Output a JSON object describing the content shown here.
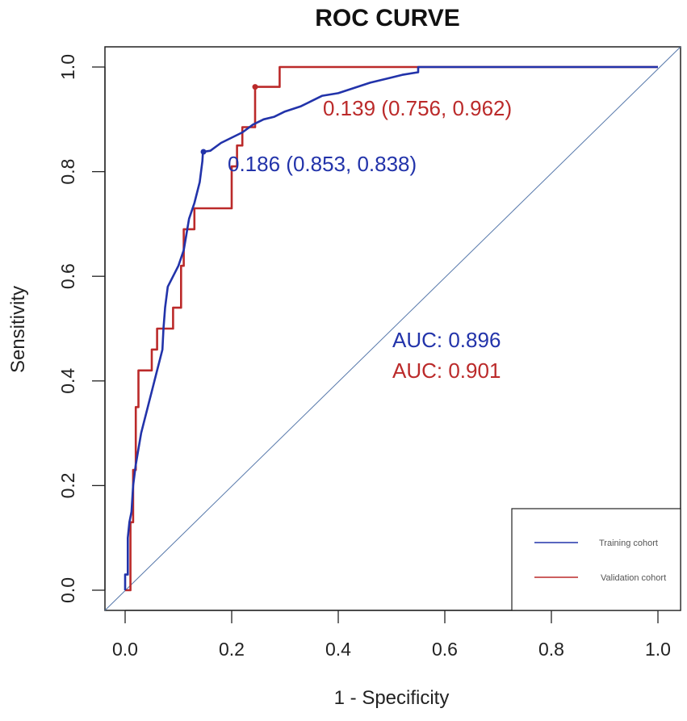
{
  "chart_data": {
    "type": "line",
    "title": "ROC CURVE",
    "xlabel": "1 - Specificity",
    "ylabel": "Sensitivity",
    "xlim": [
      0.0,
      1.0
    ],
    "ylim": [
      0.0,
      1.0
    ],
    "x_ticks": [
      "0.0",
      "0.2",
      "0.4",
      "0.6",
      "0.8",
      "1.0"
    ],
    "y_ticks": [
      "0.0",
      "0.2",
      "0.4",
      "0.6",
      "0.8",
      "1.0"
    ],
    "legend_position": "bottom-right",
    "colors": {
      "training": "#2233aa",
      "validation": "#bb2a2a",
      "diagonal": "#5577aa"
    },
    "series": [
      {
        "name": "Training cohort",
        "key": "training",
        "points": [
          [
            0.0,
            0.0
          ],
          [
            0.0,
            0.03
          ],
          [
            0.005,
            0.03
          ],
          [
            0.005,
            0.1
          ],
          [
            0.008,
            0.13
          ],
          [
            0.012,
            0.15
          ],
          [
            0.015,
            0.2
          ],
          [
            0.02,
            0.24
          ],
          [
            0.025,
            0.27
          ],
          [
            0.03,
            0.3
          ],
          [
            0.035,
            0.32
          ],
          [
            0.04,
            0.34
          ],
          [
            0.045,
            0.36
          ],
          [
            0.05,
            0.38
          ],
          [
            0.055,
            0.4
          ],
          [
            0.06,
            0.42
          ],
          [
            0.065,
            0.44
          ],
          [
            0.07,
            0.46
          ],
          [
            0.072,
            0.5
          ],
          [
            0.075,
            0.54
          ],
          [
            0.08,
            0.58
          ],
          [
            0.09,
            0.6
          ],
          [
            0.1,
            0.62
          ],
          [
            0.11,
            0.65
          ],
          [
            0.115,
            0.68
          ],
          [
            0.12,
            0.71
          ],
          [
            0.13,
            0.74
          ],
          [
            0.14,
            0.78
          ],
          [
            0.145,
            0.82
          ],
          [
            0.146,
            0.838
          ],
          [
            0.16,
            0.84
          ],
          [
            0.18,
            0.855
          ],
          [
            0.2,
            0.865
          ],
          [
            0.22,
            0.875
          ],
          [
            0.24,
            0.89
          ],
          [
            0.26,
            0.9
          ],
          [
            0.28,
            0.905
          ],
          [
            0.3,
            0.915
          ],
          [
            0.33,
            0.925
          ],
          [
            0.35,
            0.935
          ],
          [
            0.37,
            0.945
          ],
          [
            0.4,
            0.95
          ],
          [
            0.43,
            0.96
          ],
          [
            0.46,
            0.97
          ],
          [
            0.5,
            0.98
          ],
          [
            0.52,
            0.985
          ],
          [
            0.55,
            0.99
          ],
          [
            0.55,
            1.0
          ],
          [
            1.0,
            1.0
          ]
        ]
      },
      {
        "name": "Validation cohort",
        "key": "validation",
        "points": [
          [
            0.0,
            0.0
          ],
          [
            0.01,
            0.0
          ],
          [
            0.01,
            0.13
          ],
          [
            0.015,
            0.13
          ],
          [
            0.015,
            0.23
          ],
          [
            0.02,
            0.23
          ],
          [
            0.02,
            0.35
          ],
          [
            0.025,
            0.35
          ],
          [
            0.025,
            0.42
          ],
          [
            0.05,
            0.42
          ],
          [
            0.05,
            0.46
          ],
          [
            0.06,
            0.46
          ],
          [
            0.06,
            0.5
          ],
          [
            0.09,
            0.5
          ],
          [
            0.09,
            0.54
          ],
          [
            0.105,
            0.54
          ],
          [
            0.105,
            0.62
          ],
          [
            0.11,
            0.62
          ],
          [
            0.11,
            0.69
          ],
          [
            0.13,
            0.69
          ],
          [
            0.13,
            0.73
          ],
          [
            0.2,
            0.73
          ],
          [
            0.2,
            0.81
          ],
          [
            0.21,
            0.81
          ],
          [
            0.21,
            0.85
          ],
          [
            0.22,
            0.85
          ],
          [
            0.22,
            0.885
          ],
          [
            0.244,
            0.885
          ],
          [
            0.244,
            0.962
          ],
          [
            0.29,
            0.962
          ],
          [
            0.29,
            1.0
          ],
          [
            1.0,
            1.0
          ]
        ]
      }
    ],
    "thresholds": [
      {
        "key": "training",
        "point": [
          0.147,
          0.838
        ],
        "label": "0.186 (0.853, 0.838)"
      },
      {
        "key": "validation",
        "point": [
          0.244,
          0.962
        ],
        "label": "0.139 (0.756, 0.962)"
      }
    ],
    "auc": [
      {
        "key": "training",
        "label": "AUC: 0.896"
      },
      {
        "key": "validation",
        "label": "AUC: 0.901"
      }
    ],
    "legend": [
      {
        "key": "training",
        "label": "Training cohort"
      },
      {
        "key": "validation",
        "label": "Validation cohort"
      }
    ]
  }
}
